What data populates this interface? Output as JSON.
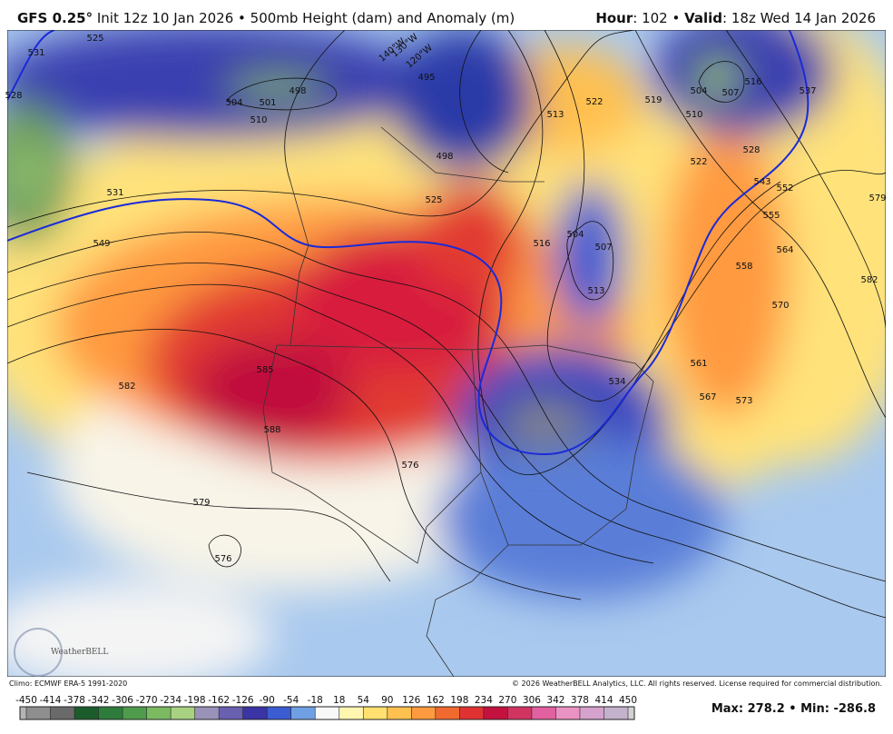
{
  "header": {
    "model": "GFS 0.25°",
    "description": "Init 12z 10 Jan 2026 • 500mb Height (dam) and Anomaly (m)",
    "hour_label": "Hour",
    "hour_value": ": 102 • ",
    "valid_label": "Valid",
    "valid_value": ": 18z Wed 14 Jan 2026"
  },
  "map": {
    "contour_labels": [
      "531",
      "525",
      "510",
      "504",
      "501",
      "498",
      "495",
      "498",
      "525",
      "549",
      "531",
      "582",
      "585",
      "588",
      "579",
      "576",
      "576",
      "528",
      "507",
      "513",
      "504",
      "516",
      "522",
      "519",
      "513",
      "510",
      "504",
      "507",
      "516",
      "537",
      "528",
      "522",
      "543",
      "552",
      "555",
      "564",
      "558",
      "570",
      "573",
      "567",
      "561",
      "534",
      "579",
      "582"
    ],
    "longitude_labels": [
      "140°W",
      "130°W",
      "120°W"
    ],
    "logo": "WeatherBELL"
  },
  "footer": {
    "climo": "Climo: ECMWF ERA-5 1991-2020",
    "copyright": "© 2026 WeatherBELL Analytics, LLC. All rights reserved. License required for commercial distribution.",
    "summary": "Max: 278.2 • Min: -286.8"
  },
  "colorbar": {
    "ticks": [
      -450,
      -414,
      -378,
      -342,
      -306,
      -270,
      -234,
      -198,
      -162,
      -126,
      -90,
      -54,
      -18,
      18,
      54,
      90,
      126,
      162,
      198,
      234,
      270,
      306,
      342,
      378,
      414,
      450
    ],
    "colors": [
      "#b4b4b4",
      "#8e8e8e",
      "#6a6a6a",
      "#1c5c2c",
      "#2e7c3c",
      "#4e9c4c",
      "#7cba62",
      "#a8d282",
      "#9a92b8",
      "#6a60b0",
      "#3a34a4",
      "#3c5cd2",
      "#70a0e4",
      "#f8f8f8",
      "#fff6b0",
      "#ffe070",
      "#ffc050",
      "#ff9a40",
      "#f06a30",
      "#e03232",
      "#c4123e",
      "#d23462",
      "#e060a0",
      "#ea92c2",
      "#d4a2cc",
      "#c4b2cc",
      "#d2d2d2"
    ]
  }
}
